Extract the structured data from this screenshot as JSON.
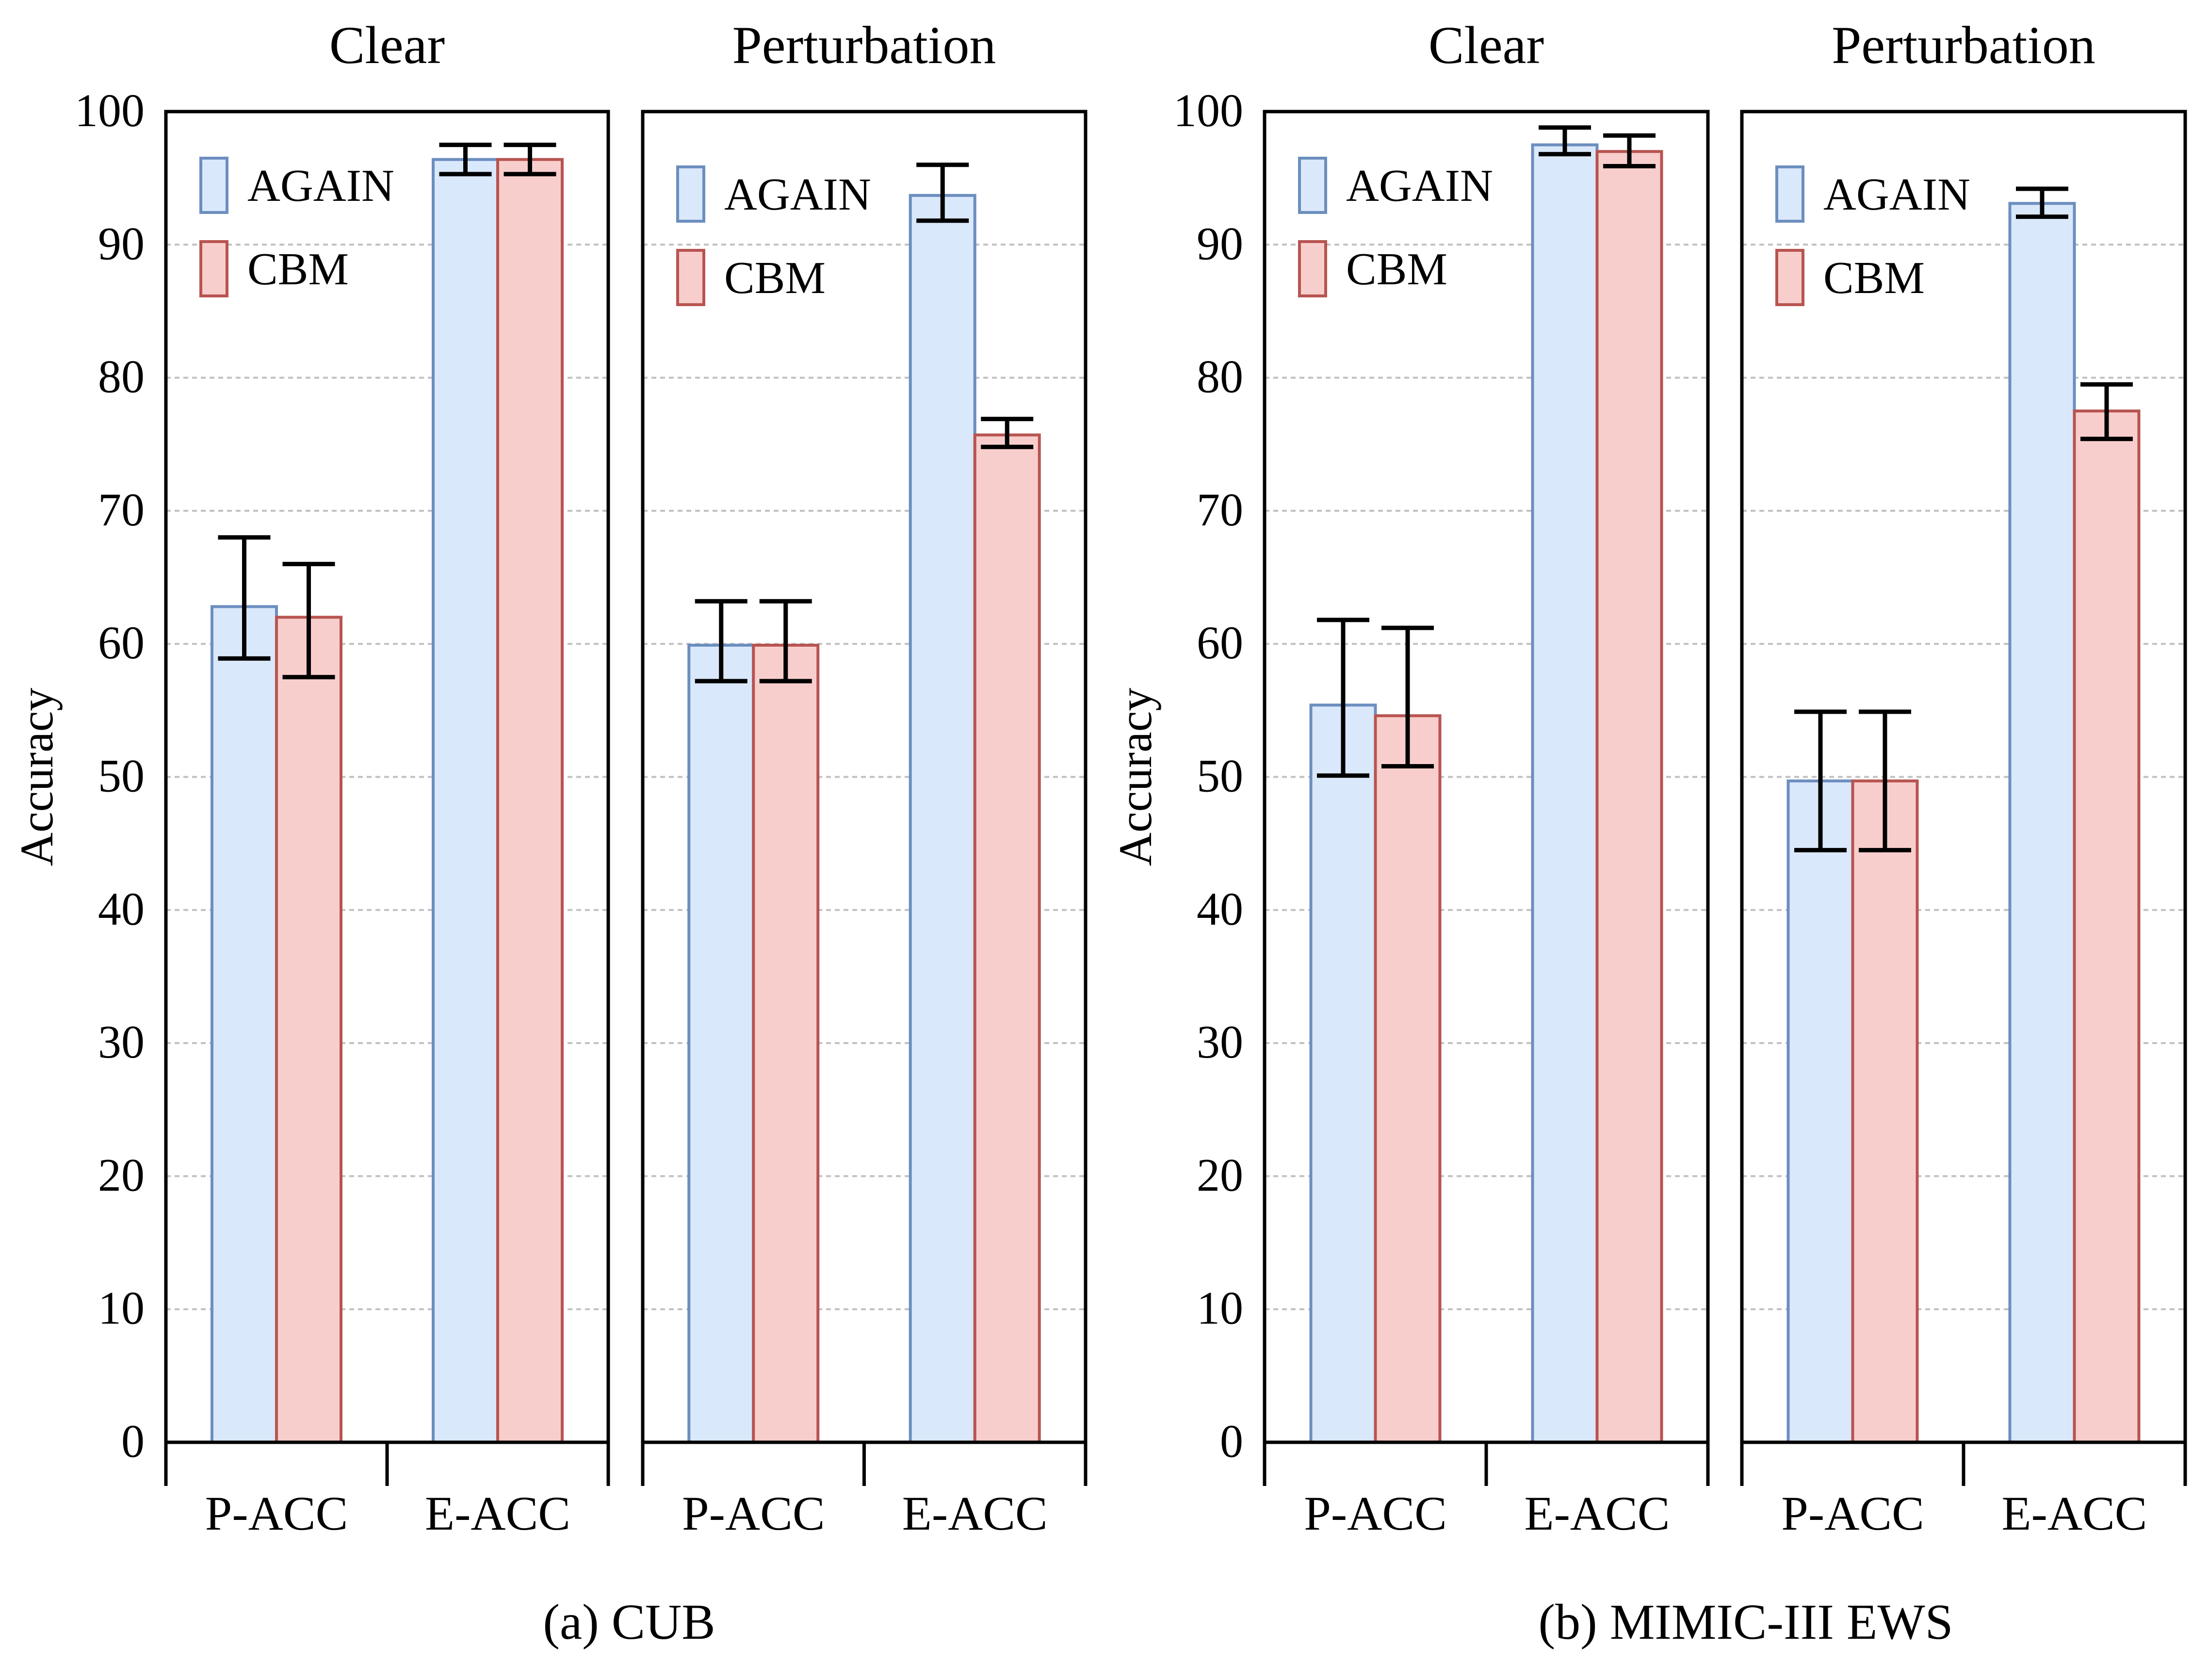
{
  "colors": {
    "again_fill": "#dae8fb",
    "again_stroke": "#6c8ebf",
    "cbm_fill": "#f8cecc",
    "cbm_stroke": "#b85450",
    "grid": "#c0c0c0",
    "axis": "#000000"
  },
  "chart_data": [
    {
      "type": "bar",
      "caption": "(a) CUB",
      "ylabel": "Accuracy",
      "ylim": [
        0,
        100
      ],
      "yticks": [
        "0",
        "10",
        "20",
        "30",
        "40",
        "50",
        "60",
        "70",
        "80",
        "90",
        "100"
      ],
      "grid": true,
      "legend": [
        "AGAIN",
        "CBM"
      ],
      "legend_position": "top-left",
      "panels": [
        {
          "title": "Clear",
          "categories": [
            "P-ACC",
            "E-ACC"
          ],
          "series": [
            {
              "name": "AGAIN",
              "values": [
                62.8,
                96.4
              ],
              "err_low": [
                58.9,
                95.3
              ],
              "err_high": [
                68.0,
                97.5
              ]
            },
            {
              "name": "CBM",
              "values": [
                62.0,
                96.4
              ],
              "err_low": [
                57.5,
                95.3
              ],
              "err_high": [
                66.0,
                97.5
              ]
            }
          ]
        },
        {
          "title": "Perturbation",
          "categories": [
            "P-ACC",
            "E-ACC"
          ],
          "series": [
            {
              "name": "AGAIN",
              "values": [
                59.9,
                93.7
              ],
              "err_low": [
                57.2,
                91.8
              ],
              "err_high": [
                63.2,
                96.0
              ]
            },
            {
              "name": "CBM",
              "values": [
                59.9,
                75.7
              ],
              "err_low": [
                57.2,
                74.8
              ],
              "err_high": [
                63.2,
                76.9
              ]
            }
          ]
        }
      ]
    },
    {
      "type": "bar",
      "caption": "(b) MIMIC-III EWS",
      "ylabel": "Accuracy",
      "ylim": [
        0,
        100
      ],
      "yticks": [
        "0",
        "10",
        "20",
        "30",
        "40",
        "50",
        "60",
        "70",
        "80",
        "90",
        "100"
      ],
      "grid": true,
      "legend": [
        "AGAIN",
        "CBM"
      ],
      "legend_position": "top-left",
      "panels": [
        {
          "title": "Clear",
          "categories": [
            "P-ACC",
            "E-ACC"
          ],
          "series": [
            {
              "name": "AGAIN",
              "values": [
                55.4,
                97.5
              ],
              "err_low": [
                50.1,
                96.8
              ],
              "err_high": [
                61.8,
                98.8
              ]
            },
            {
              "name": "CBM",
              "values": [
                54.6,
                97.0
              ],
              "err_low": [
                50.8,
                95.9
              ],
              "err_high": [
                61.2,
                98.2
              ]
            }
          ]
        },
        {
          "title": "Perturbation",
          "categories": [
            "P-ACC",
            "E-ACC"
          ],
          "series": [
            {
              "name": "AGAIN",
              "values": [
                49.7,
                93.1
              ],
              "err_low": [
                44.5,
                92.1
              ],
              "err_high": [
                54.9,
                94.2
              ]
            },
            {
              "name": "CBM",
              "values": [
                49.7,
                77.5
              ],
              "err_low": [
                44.5,
                75.4
              ],
              "err_high": [
                54.9,
                79.5
              ]
            }
          ]
        }
      ]
    }
  ]
}
